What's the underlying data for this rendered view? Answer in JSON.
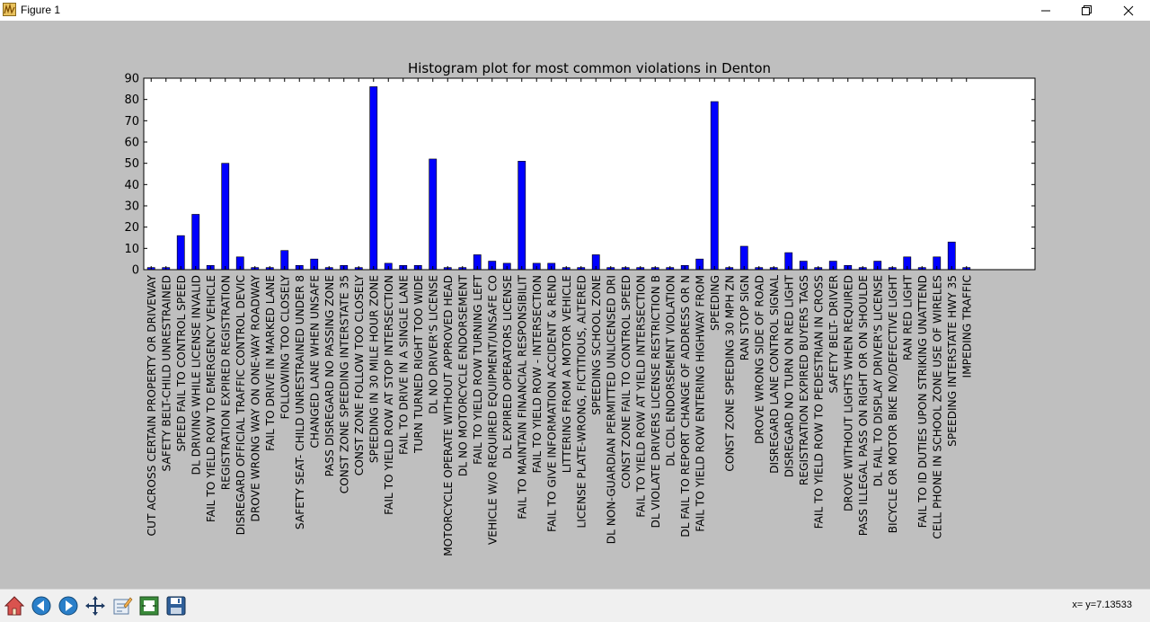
{
  "window": {
    "title": "Figure 1",
    "controls": [
      "minimize",
      "restore",
      "close"
    ]
  },
  "toolbar": {
    "buttons": [
      {
        "name": "home-icon",
        "label": "Home"
      },
      {
        "name": "back-icon",
        "label": "Back"
      },
      {
        "name": "forward-icon",
        "label": "Forward"
      },
      {
        "name": "pan-icon",
        "label": "Pan"
      },
      {
        "name": "edit-axis-icon",
        "label": "Edit"
      },
      {
        "name": "configure-subplots-icon",
        "label": "Configure subplots"
      },
      {
        "name": "save-icon",
        "label": "Save"
      }
    ],
    "coordinates": "x= y=7.13533"
  },
  "colors": {
    "bar": "#0000ff",
    "figure_bg": "#bfbfbf",
    "plot_bg": "#ffffff"
  },
  "chart_data": {
    "type": "bar",
    "title": "Histogram plot for most common violations in Denton",
    "xlabel": "",
    "ylabel": "",
    "ylim": [
      0,
      90
    ],
    "yticks": [
      0,
      10,
      20,
      30,
      40,
      50,
      60,
      70,
      80,
      90
    ],
    "grid": false,
    "categories": [
      "CUT ACROSS CERTAIN PROPERTY OR DRIVEWAY",
      "SAFETY BELT-CHILD UNRESTRAINED",
      "SPEED FAIL TO CONTROL SPEED",
      "DL DRIVING WHILE LICENSE INVALID",
      "FAIL TO YIELD ROW TO EMERGENCY VEHICLE",
      "REGISTRATION EXPIRED REGISTRATION",
      "DISREGARD OFFICIAL TRAFFIC CONTROL DEVIC",
      "DROVE WRONG WAY ON ONE-WAY ROADWAY",
      "FAIL TO DRIVE IN MARKED LANE",
      "FOLLOWING TOO CLOSELY",
      "SAFETY SEAT- CHILD UNRESTRAINED UNDER 8",
      "CHANGED LANE WHEN UNSAFE",
      "PASS DISREGARD NO PASSING ZONE",
      "CONST ZONE SPEEDING INTERSTATE 35",
      "CONST ZONE FOLLOW TOO CLOSELY",
      "SPEEDING IN 30 MILE HOUR ZONE",
      "FAIL TO YIELD ROW AT STOP INTERSECTION",
      "FAIL TO DRIVE IN A SINGLE LANE",
      "TURN TURNED RIGHT TOO WIDE",
      "DL NO DRIVER'S LICENSE",
      "MOTORCYCLE OPERATE WITHOUT APPROVED HEAD",
      "DL NO MOTORCYCLE ENDORSEMENT",
      "FAIL TO YIELD ROW TURNING LEFT",
      "VEHICLE W/O REQUIRED EQUIPMENT/UNSAFE CO",
      "DL EXPIRED OPERATORS LICENSE",
      "FAIL TO MAINTAIN FINANCIAL RESPONSIBILIT",
      "FAIL TO YIELD ROW - INTERSECTION",
      "FAIL TO GIVE INFORMATION ACCIDENT & REND",
      "LITTERING FROM A MOTOR VEHICLE",
      "LICENSE PLATE-WRONG, FICTITIOUS, ALTERED",
      "SPEEDING SCHOOL ZONE",
      "DL NON-GUARDIAN PERMITTED UNLICENSED DRI",
      "CONST ZONE FAIL TO CONTROL SPEED",
      "FAIL TO YIELD ROW AT YIELD INTERSECTION",
      "DL VIOLATE DRIVERS LICENSE RESTRICTION B",
      "DL CDL ENDORSEMENT VIOLATION",
      "DL FAIL TO REPORT CHANGE OF ADDRESS OR N",
      "FAIL TO YIELD ROW ENTERING HIGHWAY FROM",
      "SPEEDING",
      "CONST ZONE SPEEDING 30 MPH ZN",
      "RAN STOP SIGN",
      "DROVE WRONG SIDE OF ROAD",
      "DISREGARD LANE CONTROL SIGNAL",
      "DISREGARD NO TURN ON RED LIGHT",
      "REGISTRATION EXPIRED BUYERS TAGS",
      "FAIL TO YIELD ROW TO PEDESTRIAN IN CROSS",
      "SAFETY BELT- DRIVER",
      "DROVE WITHOUT LIGHTS WHEN REQUIRED",
      "PASS ILLEGAL PASS ON RIGHT OR ON SHOULDE",
      "DL FAIL TO DISPLAY DRIVER'S LICENSE",
      "BICYCLE OR MOTOR BIKE NO/DEFECTIVE LIGHT",
      "RAN RED LIGHT",
      "FAIL TO ID DUTIES UPON STRIKING UNATTEND",
      "CELL PHONE IN SCHOOL ZONE USE OF WIRELES",
      "SPEEDING INTERSTATE HWY 35",
      "IMPEDING TRAFFIC"
    ],
    "values": [
      1,
      1,
      16,
      26,
      2,
      50,
      6,
      1,
      1,
      9,
      2,
      5,
      1,
      2,
      1,
      86,
      3,
      2,
      2,
      52,
      1,
      1,
      7,
      4,
      3,
      51,
      3,
      3,
      1,
      1,
      7,
      1,
      1,
      1,
      1,
      1,
      2,
      5,
      79,
      1,
      11,
      1,
      1,
      8,
      4,
      1,
      4,
      2,
      1,
      4,
      1,
      6,
      1,
      6,
      13,
      1
    ]
  }
}
